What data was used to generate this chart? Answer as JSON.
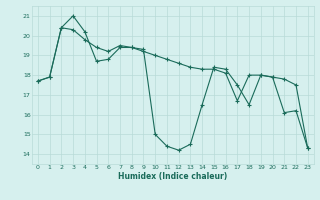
{
  "xlabel": "Humidex (Indice chaleur)",
  "background_color": "#d6f0ee",
  "grid_color": "#b8dbd8",
  "line_color": "#1a6b5a",
  "xlim": [
    -0.5,
    23.5
  ],
  "ylim": [
    13.5,
    21.5
  ],
  "yticks": [
    14,
    15,
    16,
    17,
    18,
    19,
    20,
    21
  ],
  "xticks": [
    0,
    1,
    2,
    3,
    4,
    5,
    6,
    7,
    8,
    9,
    10,
    11,
    12,
    13,
    14,
    15,
    16,
    17,
    18,
    19,
    20,
    21,
    22,
    23
  ],
  "line1_x": [
    0,
    1,
    2,
    3,
    4,
    5,
    6,
    7,
    8,
    9,
    10,
    11,
    12,
    13,
    14,
    15,
    16,
    17,
    18,
    19,
    20,
    21,
    22,
    23
  ],
  "line1_y": [
    17.7,
    17.9,
    20.4,
    21.0,
    20.2,
    18.7,
    18.8,
    19.4,
    19.4,
    19.3,
    15.0,
    14.4,
    14.2,
    14.5,
    16.5,
    18.4,
    18.3,
    17.5,
    16.5,
    18.0,
    17.9,
    16.1,
    16.2,
    14.3
  ],
  "line2_x": [
    0,
    1,
    2,
    3,
    4,
    5,
    6,
    7,
    8,
    9,
    10,
    11,
    12,
    13,
    14,
    15,
    16,
    17,
    18,
    19,
    20,
    21,
    22,
    23
  ],
  "line2_y": [
    17.7,
    17.9,
    20.4,
    20.3,
    19.8,
    19.4,
    19.2,
    19.5,
    19.4,
    19.2,
    19.0,
    18.8,
    18.6,
    18.4,
    18.3,
    18.3,
    18.1,
    16.7,
    18.0,
    18.0,
    17.9,
    17.8,
    17.5,
    14.3
  ],
  "figsize": [
    3.2,
    2.0
  ],
  "dpi": 100
}
